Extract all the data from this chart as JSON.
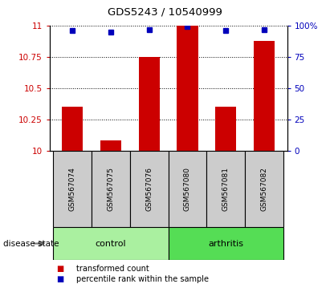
{
  "title": "GDS5243 / 10540999",
  "samples": [
    "GSM567074",
    "GSM567075",
    "GSM567076",
    "GSM567080",
    "GSM567081",
    "GSM567082"
  ],
  "red_values": [
    10.35,
    10.08,
    10.75,
    11.0,
    10.35,
    10.88
  ],
  "blue_values": [
    96,
    95,
    97,
    99,
    96,
    97
  ],
  "ylim_left": [
    10,
    11
  ],
  "ylim_right": [
    0,
    100
  ],
  "yticks_left": [
    10,
    10.25,
    10.5,
    10.75,
    11
  ],
  "yticks_right": [
    0,
    25,
    50,
    75,
    100
  ],
  "ytick_labels_left": [
    "10",
    "10.25",
    "10.5",
    "10.75",
    "11"
  ],
  "ytick_labels_right": [
    "0",
    "25",
    "50",
    "75",
    "100%"
  ],
  "groups": [
    {
      "label": "control",
      "indices": [
        0,
        1,
        2
      ],
      "color": "#aaf0a0"
    },
    {
      "label": "arthritis",
      "indices": [
        3,
        4,
        5
      ],
      "color": "#55dd55"
    }
  ],
  "bar_color": "#cc0000",
  "dot_color": "#0000bb",
  "bar_width": 0.55,
  "sample_box_color": "#cccccc",
  "legend_items": [
    {
      "label": "transformed count",
      "color": "#cc0000"
    },
    {
      "label": "percentile rank within the sample",
      "color": "#0000bb"
    }
  ],
  "disease_state_label": "disease state"
}
